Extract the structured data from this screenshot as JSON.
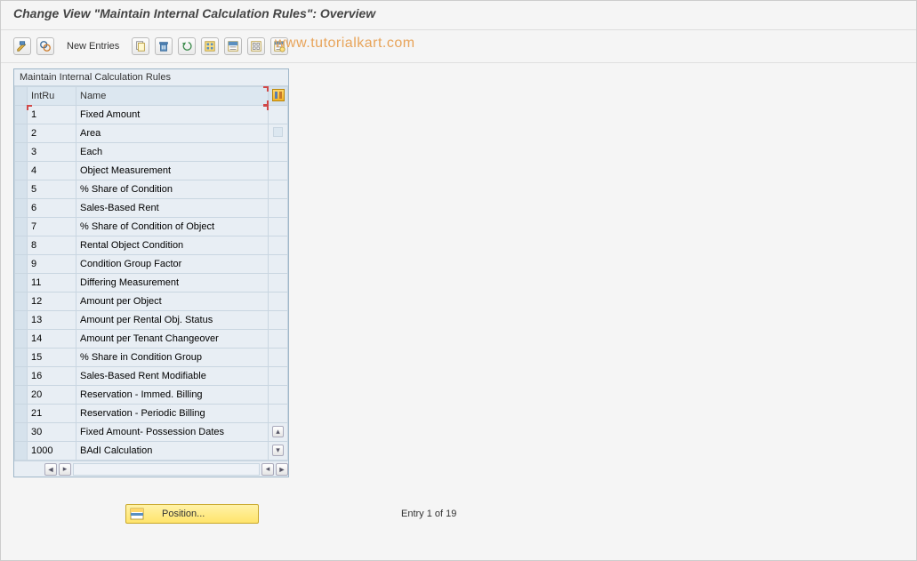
{
  "page_title": "Change View \"Maintain Internal Calculation Rules\": Overview",
  "toolbar": {
    "new_entries_label": "New Entries"
  },
  "watermark": "www.tutorialkart.com",
  "panel": {
    "title": "Maintain Internal Calculation Rules",
    "col1_header": "IntRu",
    "col2_header": "Name",
    "rows": [
      {
        "id": "1",
        "name": "Fixed Amount"
      },
      {
        "id": "2",
        "name": "Area"
      },
      {
        "id": "3",
        "name": "Each"
      },
      {
        "id": "4",
        "name": "Object Measurement"
      },
      {
        "id": "5",
        "name": "% Share of Condition"
      },
      {
        "id": "6",
        "name": "Sales-Based Rent"
      },
      {
        "id": "7",
        "name": "% Share of Condition of Object"
      },
      {
        "id": "8",
        "name": "Rental Object Condition"
      },
      {
        "id": "9",
        "name": "Condition Group Factor"
      },
      {
        "id": "11",
        "name": "Differing Measurement"
      },
      {
        "id": "12",
        "name": "Amount per Object"
      },
      {
        "id": "13",
        "name": "Amount per Rental Obj. Status"
      },
      {
        "id": "14",
        "name": "Amount per Tenant Changeover"
      },
      {
        "id": "15",
        "name": "% Share in Condition Group"
      },
      {
        "id": "16",
        "name": "Sales-Based Rent Modifiable"
      },
      {
        "id": "20",
        "name": "Reservation - Immed. Billing"
      },
      {
        "id": "21",
        "name": "Reservation - Periodic Billing"
      },
      {
        "id": "30",
        "name": "Fixed Amount- Possession Dates"
      },
      {
        "id": "1000",
        "name": "BAdI Calculation"
      }
    ]
  },
  "footer": {
    "position_label": "Position...",
    "entry_text": "Entry 1 of 19"
  },
  "colors": {
    "header_bg": "#dce7f0",
    "row_bg": "#e8eef4",
    "border": "#c9d6e1",
    "corner_mark": "#d04848",
    "watermark": "#e8a45a",
    "position_btn_bg": "#ffe46b"
  }
}
